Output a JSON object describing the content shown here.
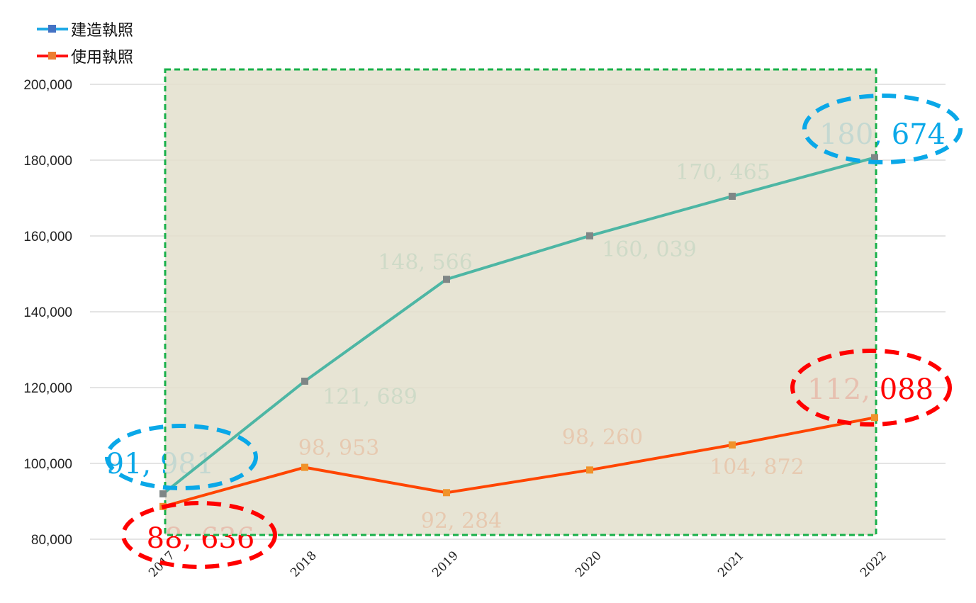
{
  "chart_data": {
    "type": "line",
    "title": "",
    "xlabel": "",
    "ylabel": "",
    "categories": [
      "2017",
      "2018",
      "2019",
      "2020",
      "2021",
      "2022"
    ],
    "series": [
      {
        "name": "建造執照",
        "values": [
          91981,
          121689,
          148566,
          160039,
          170465,
          180674
        ],
        "labels": [
          "91, 981",
          "121, 689",
          "148, 566",
          "160, 039",
          "170, 465",
          "180, 674"
        ],
        "line_color": "#4db6a4",
        "marker_color": "#7f8686",
        "legend_line_color": "#1fa9e6",
        "legend_marker_color": "#4472c4",
        "highlight_color": "#0aa8e8"
      },
      {
        "name": "使用執照",
        "values": [
          88636,
          98953,
          92284,
          98260,
          104872,
          112088
        ],
        "labels": [
          "88, 636",
          "98, 953",
          "92, 284",
          "98, 260",
          "104, 872",
          "112, 088"
        ],
        "line_color": "#ff4500",
        "marker_color": "#f0922a",
        "legend_line_color": "#ff1010",
        "legend_marker_color": "#ed7d31",
        "highlight_color": "#ff0000"
      }
    ],
    "y_ticks": [
      "80,000",
      "100,000",
      "120,000",
      "140,000",
      "160,000",
      "180,000",
      "200,000"
    ],
    "ylim": [
      80000,
      200000
    ],
    "grid": true,
    "legend_position": "top-left",
    "annotations": {
      "highlight_box": {
        "from": "2017",
        "to": "2022",
        "fill": "#e3dfcd",
        "border": "#18b04a",
        "style": "dashed"
      },
      "ellipses": [
        {
          "series": "建造執照",
          "category": "2017",
          "color": "#0aa8e8"
        },
        {
          "series": "使用執照",
          "category": "2017",
          "color": "#ff0000"
        },
        {
          "series": "建造執照",
          "category": "2022",
          "color": "#0aa8e8"
        },
        {
          "series": "使用執照",
          "category": "2022",
          "color": "#ff0000"
        }
      ]
    }
  },
  "legend": {
    "items": [
      {
        "label": "建造執照"
      },
      {
        "label": "使用執照"
      }
    ]
  }
}
